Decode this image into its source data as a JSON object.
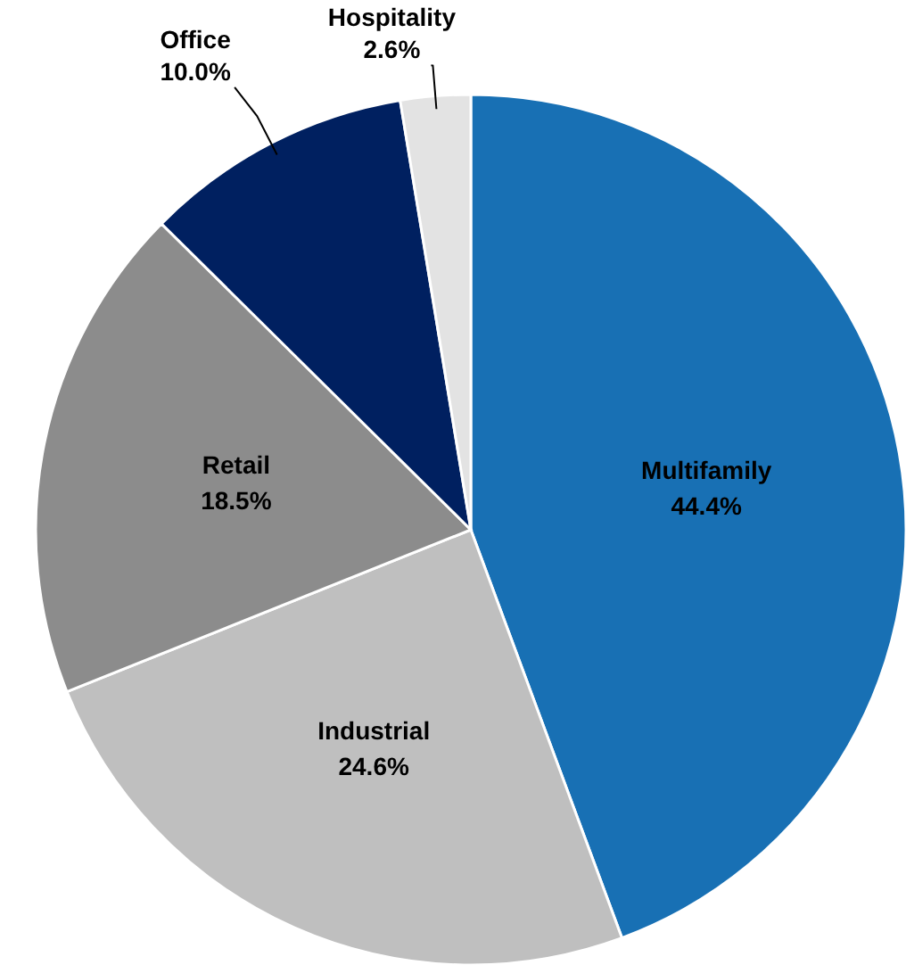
{
  "chart_data": {
    "type": "pie",
    "categories": [
      "Multifamily",
      "Industrial",
      "Retail",
      "Office",
      "Hospitality"
    ],
    "values": [
      44.4,
      24.6,
      18.5,
      10.0,
      2.6
    ],
    "value_labels": [
      "44.4%",
      "24.6%",
      "18.5%",
      "10.0%",
      "2.6%"
    ],
    "colors": [
      "#1870b4",
      "#bfbfbf",
      "#8c8c8c",
      "#002060",
      "#e3e3e3"
    ]
  }
}
